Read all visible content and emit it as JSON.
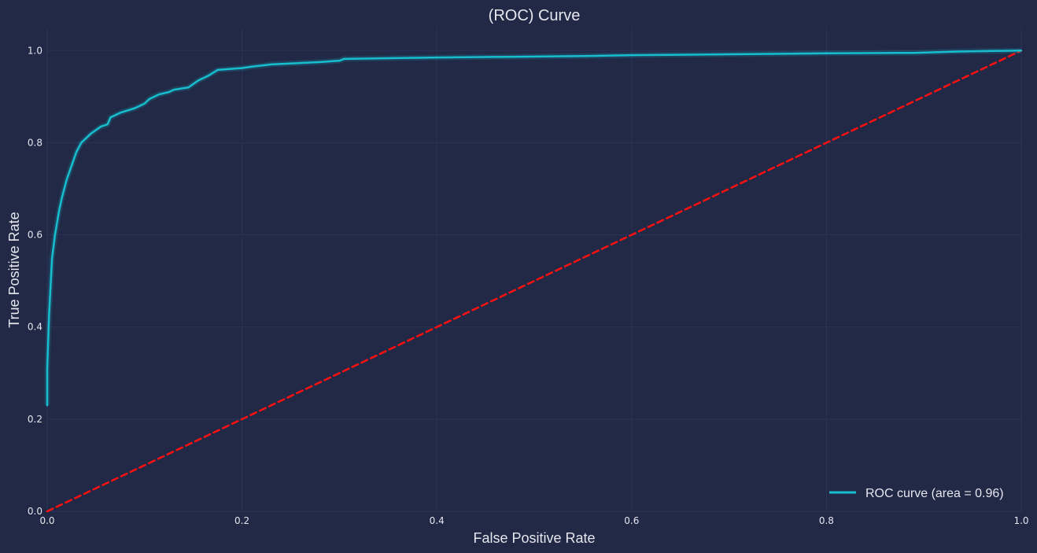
{
  "chart_data": {
    "type": "line",
    "title": "(ROC) Curve",
    "xlabel": "False Positive Rate",
    "ylabel": "True Positive Rate",
    "xlim": [
      0.0,
      1.0
    ],
    "ylim": [
      0.0,
      1.05
    ],
    "xticks": [
      "0.0",
      "0.2",
      "0.4",
      "0.6",
      "0.8",
      "1.0"
    ],
    "yticks": [
      "0.0",
      "0.2",
      "0.4",
      "0.6",
      "0.8",
      "1.0"
    ],
    "grid": true,
    "legend_position": "lower-right",
    "series": [
      {
        "name": "ROC curve (area = 0.96)",
        "color": "#17becf",
        "style": "solid",
        "x": [
          0.0,
          0.0,
          0.002,
          0.005,
          0.008,
          0.012,
          0.015,
          0.02,
          0.025,
          0.03,
          0.035,
          0.045,
          0.055,
          0.062,
          0.065,
          0.075,
          0.09,
          0.1,
          0.105,
          0.115,
          0.125,
          0.13,
          0.145,
          0.155,
          0.165,
          0.175,
          0.2,
          0.21,
          0.23,
          0.28,
          0.3,
          0.305,
          0.4,
          0.55,
          0.6,
          0.7,
          0.8,
          0.89,
          0.935,
          1.0
        ],
        "y": [
          0.23,
          0.31,
          0.43,
          0.55,
          0.6,
          0.65,
          0.68,
          0.72,
          0.75,
          0.78,
          0.8,
          0.82,
          0.835,
          0.84,
          0.855,
          0.865,
          0.875,
          0.885,
          0.895,
          0.905,
          0.91,
          0.915,
          0.92,
          0.935,
          0.945,
          0.958,
          0.962,
          0.965,
          0.97,
          0.975,
          0.978,
          0.982,
          0.985,
          0.988,
          0.99,
          0.992,
          0.994,
          0.995,
          0.998,
          1.0
        ]
      },
      {
        "name": "",
        "color": "#ff1010",
        "style": "dashed",
        "x": [
          0.0,
          1.0
        ],
        "y": [
          0.0,
          1.0
        ]
      }
    ],
    "colors": {
      "background": "#212946",
      "grid": "#2a3459",
      "text": "#e6e6ee"
    }
  }
}
